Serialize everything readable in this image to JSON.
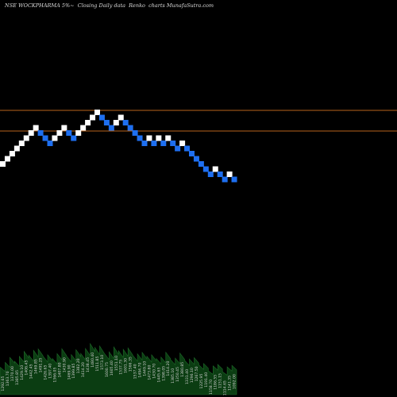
{
  "header": {
    "title": "NSE WOCKPHARMA 5%~  Closing Daily data  Renko  charts MunafaSutra.com"
  },
  "colors": {
    "background": "#000000",
    "up_brick": "#ffffff",
    "down_brick": "#1e6ff0",
    "level_line": "#b8651c",
    "volume_fill": "#0b3d12"
  },
  "chart_data": {
    "type": "renko",
    "brick_pct": 5,
    "directions": [
      1,
      1,
      1,
      1,
      1,
      1,
      1,
      1,
      -1,
      -1,
      -1,
      1,
      1,
      1,
      -1,
      -1,
      1,
      1,
      1,
      1,
      1,
      -1,
      -1,
      -1,
      1,
      1,
      -1,
      -1,
      -1,
      -1,
      -1,
      1,
      -1,
      1,
      -1,
      1,
      -1,
      -1,
      1,
      -1,
      -1,
      -1,
      -1,
      -1,
      -1,
      1,
      -1,
      -1,
      1,
      -1
    ],
    "levels": [
      1,
      4
    ],
    "volume_labels": [
      "1292.65",
      "1363.70",
      "1370.00",
      "1385.85",
      "1429.10",
      "1406.45",
      "1442.45",
      "1469.85",
      "1491.25",
      "1426.65",
      "1397.40",
      "1366.05",
      "1407.80",
      "1430.90",
      "1469.90",
      "1399.85",
      "1382.20",
      "1414.20",
      "1438.45",
      "1480.40",
      "1511.85",
      "1573.10",
      "1600.75",
      "1605.40",
      "1551.10",
      "1537.75",
      "1601.30",
      "1566.35",
      "1537.40",
      "1494.70",
      "1449.10",
      "1473.80",
      "1430.70",
      "1445.65",
      "1398.05",
      "1414.20",
      "1385.10",
      "1350.45",
      "1380.85",
      "1331.40",
      "1296.10",
      "1267.50",
      "1225.95",
      "1191.40",
      "1158.70",
      "1186.55",
      "1151.15",
      "1114.65",
      "1141.35",
      "1092.00"
    ]
  }
}
